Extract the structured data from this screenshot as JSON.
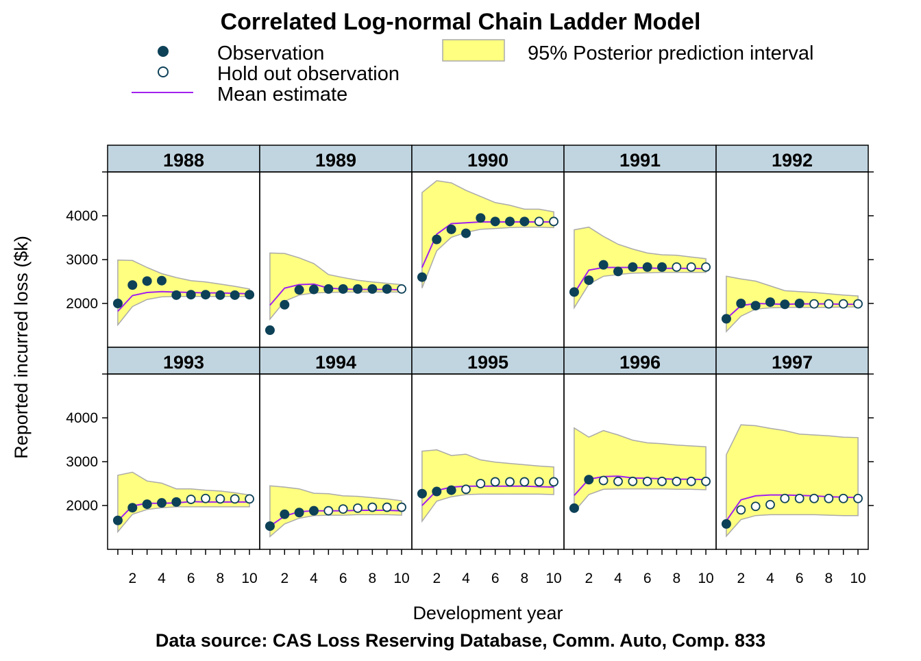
{
  "chart_data": {
    "type": "line",
    "title": "Correlated Log-normal Chain Ladder Model",
    "xlabel": "Development year",
    "ylabel": "Reported incurred loss ($k)",
    "footer": "Data source: CAS Loss Reserving Database, Comm. Auto, Comp. 833",
    "x_ticks": [
      "2",
      "4",
      "6",
      "8",
      "10"
    ],
    "y_ticks": [
      "2000",
      "3000",
      "4000"
    ],
    "xlim": [
      0.3,
      10.7
    ],
    "ylim": [
      1000,
      5000
    ],
    "legend": {
      "observation": "Observation",
      "holdout": "Hold out observation",
      "mean": "Mean estimate",
      "interval": "95% Posterior prediction interval"
    },
    "colors": {
      "observation": "#0d4157",
      "mean": "#a020f0",
      "interval_fill": "#ffff80",
      "interval_border": "#aaaaaa",
      "strip": "#c1d5e0"
    },
    "x": [
      1,
      2,
      3,
      4,
      5,
      6,
      7,
      8,
      9,
      10
    ],
    "panels": [
      {
        "year": "1988",
        "observed": [
          2000,
          2420,
          2510,
          2520,
          2190,
          2200,
          2200,
          2190,
          2190,
          2200
        ],
        "holdout": [
          null,
          null,
          null,
          null,
          null,
          null,
          null,
          null,
          null,
          null
        ],
        "mean": [
          1820,
          2180,
          2250,
          2270,
          2260,
          2250,
          2240,
          2240,
          2230,
          2220
        ],
        "lower": [
          1510,
          1930,
          2090,
          2150,
          2160,
          2160,
          2160,
          2160,
          2160,
          2160
        ],
        "upper": [
          2990,
          2980,
          2820,
          2680,
          2590,
          2520,
          2490,
          2440,
          2390,
          2330
        ]
      },
      {
        "year": "1989",
        "observed": [
          1390,
          1970,
          2310,
          2320,
          2330,
          2330,
          2330,
          2330,
          2330,
          null
        ],
        "holdout": [
          null,
          null,
          null,
          null,
          null,
          null,
          null,
          null,
          null,
          2330
        ],
        "mean": [
          1960,
          2350,
          2430,
          2440,
          2350,
          2330,
          2320,
          2320,
          2320,
          2310
        ],
        "lower": [
          1640,
          2050,
          2190,
          2240,
          2250,
          2260,
          2260,
          2260,
          2260,
          2260
        ],
        "upper": [
          3150,
          3140,
          3040,
          2910,
          2660,
          2590,
          2530,
          2490,
          2460,
          2430
        ]
      },
      {
        "year": "1990",
        "observed": [
          2600,
          3460,
          3690,
          3600,
          3950,
          3870,
          3870,
          3870,
          null,
          null
        ],
        "holdout": [
          null,
          null,
          null,
          null,
          null,
          null,
          null,
          null,
          3870,
          3870
        ],
        "mean": [
          2820,
          3580,
          3820,
          3840,
          3860,
          3860,
          3860,
          3860,
          3860,
          3860
        ],
        "lower": [
          2350,
          3200,
          3510,
          3620,
          3690,
          3710,
          3730,
          3740,
          3740,
          3730
        ],
        "upper": [
          4530,
          4800,
          4750,
          4580,
          4440,
          4300,
          4240,
          4150,
          4150,
          4090
        ]
      },
      {
        "year": "1991",
        "observed": [
          2260,
          2530,
          2880,
          2730,
          2830,
          2830,
          2830,
          null,
          null,
          null
        ],
        "holdout": [
          null,
          null,
          null,
          null,
          null,
          null,
          null,
          2830,
          2830,
          2830
        ],
        "mean": [
          2230,
          2760,
          2820,
          2820,
          2820,
          2810,
          2800,
          2800,
          2800,
          2790
        ],
        "lower": [
          1900,
          2440,
          2620,
          2660,
          2690,
          2700,
          2710,
          2710,
          2710,
          2710
        ],
        "upper": [
          3680,
          3740,
          3530,
          3350,
          3240,
          3150,
          3110,
          3100,
          3060,
          3020
        ]
      },
      {
        "year": "1992",
        "observed": [
          1650,
          2000,
          1950,
          2030,
          1980,
          2000,
          null,
          null,
          null,
          null
        ],
        "holdout": [
          null,
          null,
          null,
          null,
          null,
          null,
          1990,
          1990,
          1990,
          1990
        ],
        "mean": [
          1650,
          1950,
          2000,
          1990,
          1980,
          1990,
          1990,
          1990,
          1980,
          1980
        ],
        "lower": [
          1360,
          1710,
          1870,
          1900,
          1910,
          1910,
          1910,
          1910,
          1920,
          1920
        ],
        "upper": [
          2620,
          2560,
          2510,
          2400,
          2290,
          2270,
          2250,
          2220,
          2190,
          2170
        ]
      },
      {
        "year": "1993",
        "observed": [
          1660,
          1950,
          2030,
          2060,
          2080,
          null,
          null,
          null,
          null,
          null
        ],
        "holdout": [
          null,
          null,
          null,
          null,
          null,
          2140,
          2160,
          2150,
          2150,
          2150
        ],
        "mean": [
          1650,
          1990,
          2050,
          2050,
          2060,
          2090,
          2080,
          2080,
          2080,
          2080
        ],
        "lower": [
          1400,
          1800,
          1910,
          1950,
          1970,
          1970,
          1970,
          1970,
          1970,
          1970
        ],
        "upper": [
          2690,
          2760,
          2560,
          2510,
          2380,
          2380,
          2350,
          2330,
          2290,
          2240
        ]
      },
      {
        "year": "1994",
        "observed": [
          1530,
          1800,
          1840,
          1880,
          null,
          null,
          null,
          null,
          null,
          null
        ],
        "holdout": [
          null,
          null,
          null,
          null,
          1880,
          1920,
          1940,
          1960,
          1960,
          1960
        ],
        "mean": [
          1530,
          1760,
          1860,
          1880,
          1880,
          1880,
          1890,
          1890,
          1890,
          1880
        ],
        "lower": [
          1290,
          1580,
          1710,
          1770,
          1780,
          1780,
          1790,
          1790,
          1790,
          1780
        ],
        "upper": [
          2450,
          2420,
          2380,
          2280,
          2270,
          2220,
          2210,
          2180,
          2150,
          2110
        ]
      },
      {
        "year": "1995",
        "observed": [
          2270,
          2320,
          2350,
          null,
          null,
          null,
          null,
          null,
          null,
          null
        ],
        "holdout": [
          null,
          null,
          null,
          2370,
          2500,
          2540,
          2540,
          2540,
          2540,
          2540
        ],
        "mean": [
          2000,
          2340,
          2420,
          2440,
          2440,
          2440,
          2440,
          2440,
          2430,
          2420
        ],
        "lower": [
          1640,
          2100,
          2200,
          2250,
          2260,
          2260,
          2260,
          2260,
          2260,
          2250
        ],
        "upper": [
          3240,
          3270,
          3140,
          3170,
          3040,
          2990,
          2960,
          2930,
          2900,
          2880
        ]
      },
      {
        "year": "1996",
        "observed": [
          1940,
          2590,
          null,
          null,
          null,
          null,
          null,
          null,
          null,
          null
        ],
        "holdout": [
          null,
          null,
          2570,
          2550,
          2550,
          2550,
          2550,
          2550,
          2550,
          2550
        ],
        "mean": [
          2230,
          2600,
          2660,
          2670,
          2630,
          2620,
          2610,
          2600,
          2600,
          2590
        ],
        "lower": [
          1860,
          2250,
          2370,
          2380,
          2380,
          2380,
          2380,
          2370,
          2370,
          2360
        ],
        "upper": [
          3770,
          3560,
          3710,
          3610,
          3490,
          3430,
          3410,
          3380,
          3360,
          3340
        ]
      },
      {
        "year": "1997",
        "observed": [
          1580,
          null,
          null,
          null,
          null,
          null,
          null,
          null,
          null,
          null
        ],
        "holdout": [
          null,
          1900,
          1980,
          2020,
          2160,
          2160,
          2160,
          2160,
          2160,
          2160
        ],
        "mean": [
          1650,
          2130,
          2220,
          2240,
          2240,
          2230,
          2220,
          2200,
          2190,
          2180
        ],
        "lower": [
          1300,
          1680,
          1770,
          1790,
          1790,
          1790,
          1790,
          1780,
          1770,
          1770
        ],
        "upper": [
          3160,
          3840,
          3820,
          3760,
          3710,
          3630,
          3610,
          3590,
          3560,
          3550
        ]
      }
    ]
  }
}
